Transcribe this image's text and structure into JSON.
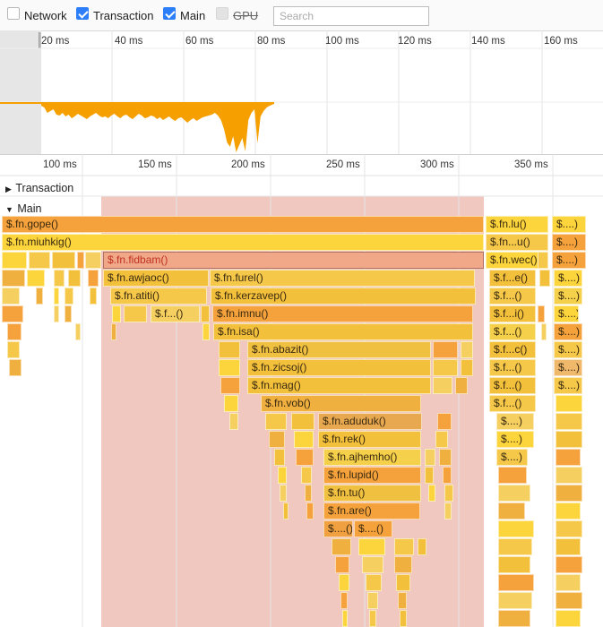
{
  "toolbar": {
    "filters": [
      {
        "label": "Network",
        "checked": false,
        "disabled": false
      },
      {
        "label": "Transaction",
        "checked": true,
        "disabled": false
      },
      {
        "label": "Main",
        "checked": true,
        "disabled": false
      },
      {
        "label": "GPU",
        "checked": false,
        "disabled": true
      }
    ],
    "search_placeholder": "Search"
  },
  "overview": {
    "tick_labels": [
      "20 ms",
      "40 ms",
      "60 ms",
      "80 ms",
      "100 ms",
      "120 ms",
      "140 ms",
      "160 ms"
    ]
  },
  "ruler": {
    "tick_labels": [
      "100 ms",
      "150 ms",
      "200 ms",
      "250 ms",
      "300 ms",
      "350 ms"
    ]
  },
  "tracks": {
    "transaction": {
      "label": "Transaction",
      "expanded": false
    },
    "main": {
      "label": "Main",
      "expanded": true
    }
  },
  "colors": {
    "selection_overlay": "#f0c8c0",
    "activity": "#f5a000",
    "checkbox_checked": "#2d7ff9",
    "highlight_block": "#f0a888"
  },
  "flame": {
    "labels": [
      "$.fn.gope()",
      "$.fn.miuhkig()",
      "$.fn.fidbam()",
      "$.fn.awjaoc()",
      "$.fn.atiti()",
      "$.f...()",
      "$.fn.furel()",
      "$.fn.kerzavep()",
      "$.fn.imnu()",
      "$.fn.isa()",
      "$.fn.abazit()",
      "$.fn.zicsoj()",
      "$.fn.mag()",
      "$.fn.vob()",
      "$.fn.aduduk()",
      "$.fn.rek()",
      "$.fn.ajhemho()",
      "$.fn.lupid()",
      "$.fn.tu()",
      "$.fn.are()",
      "$....()",
      "$....()",
      "$.fn.lu()",
      "$.fn...u()",
      "$.fn.wec()",
      "$.f...e()",
      "$.f...()",
      "$.f...i()",
      "$.f...()",
      "$.f...c()",
      "$.f...()",
      "$.f...()",
      "$.f...()",
      "$....)",
      "$....)",
      "$....)",
      "$....)",
      "$....)",
      "$....)",
      "$....)",
      "$....)",
      "$....)",
      "$....)",
      "$....)",
      "$....)",
      "$....)"
    ]
  }
}
